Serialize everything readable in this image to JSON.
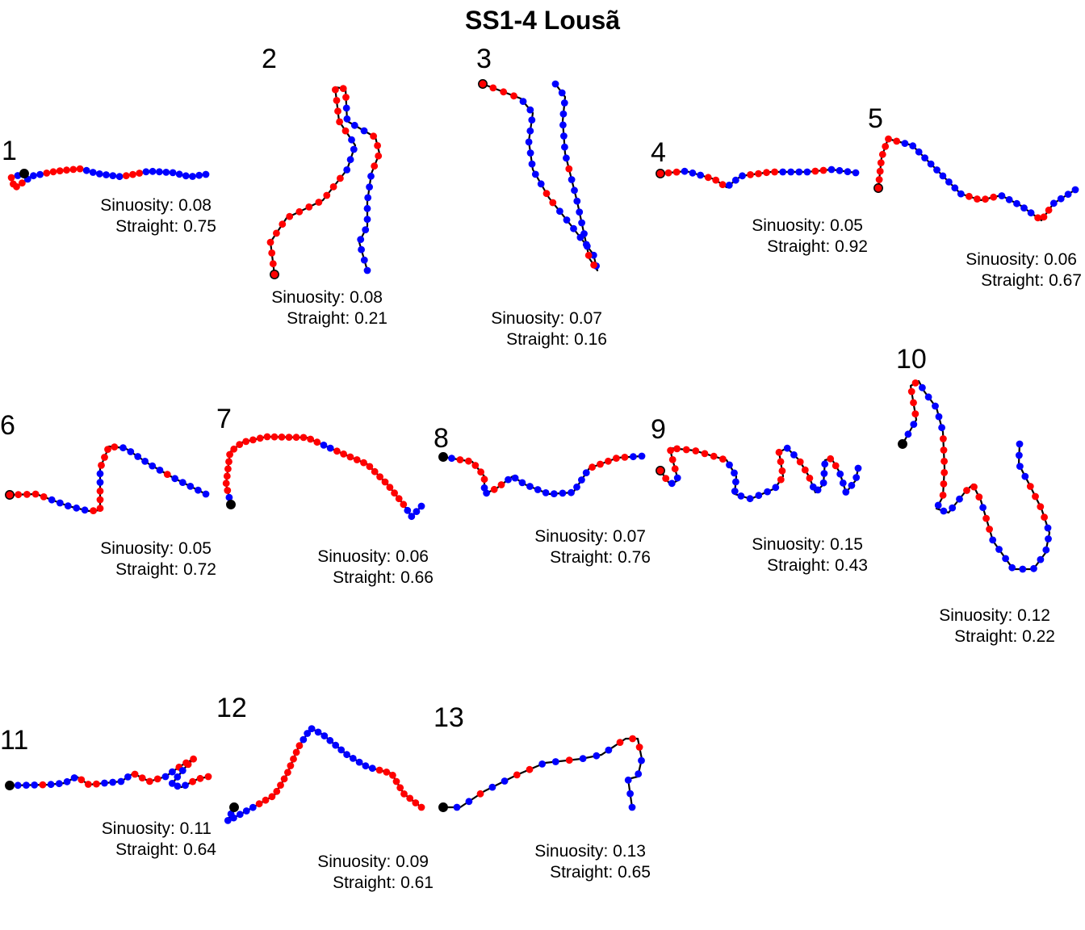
{
  "chart_data": {
    "type": "line",
    "title": "SS1-4 Lousã",
    "colors": {
      "path": "#000000",
      "red_point": "#ff0000",
      "blue_point": "#0000ff",
      "start_point": "#000000"
    },
    "stat_labels": {
      "sinuosity": "Sinuosity:",
      "straight": "Straight:"
    },
    "panels": [
      {
        "id": "1",
        "sinuosity": "0.08",
        "straight": "0.75"
      },
      {
        "id": "2",
        "sinuosity": "0.08",
        "straight": "0.21"
      },
      {
        "id": "3",
        "sinuosity": "0.07",
        "straight": "0.16"
      },
      {
        "id": "4",
        "sinuosity": "0.05",
        "straight": "0.92"
      },
      {
        "id": "5",
        "sinuosity": "0.06",
        "straight": "0.67"
      },
      {
        "id": "6",
        "sinuosity": "0.05",
        "straight": "0.72"
      },
      {
        "id": "7",
        "sinuosity": "0.06",
        "straight": "0.66"
      },
      {
        "id": "8",
        "sinuosity": "0.07",
        "straight": "0.76"
      },
      {
        "id": "9",
        "sinuosity": "0.15",
        "straight": "0.43"
      },
      {
        "id": "10",
        "sinuosity": "0.12",
        "straight": "0.22"
      },
      {
        "id": "11",
        "sinuosity": "0.11",
        "straight": "0.64"
      },
      {
        "id": "12",
        "sinuosity": "0.09",
        "straight": "0.61"
      },
      {
        "id": "13",
        "sinuosity": "0.13",
        "straight": "0.65"
      }
    ]
  }
}
